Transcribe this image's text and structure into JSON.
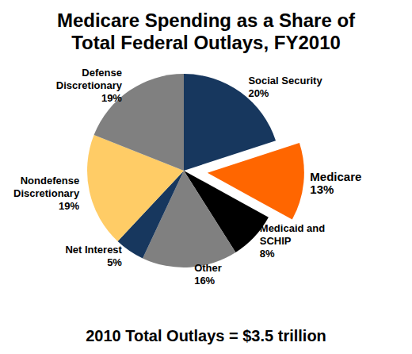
{
  "chart_data": {
    "type": "pie",
    "title": "Medicare Spending as a Share of\nTotal Federal Outlays, FY2010",
    "subtitle": "2010 Total Outlays = $3.5 trillion",
    "categories": [
      "Social Security",
      "Medicare",
      "Medicaid and\nSCHIP",
      "Other",
      "Net Interest",
      "Nondefense\nDiscretionary",
      "Defense\nDiscretionary"
    ],
    "values": [
      20,
      13,
      8,
      16,
      5,
      19,
      19
    ],
    "value_labels": [
      "20%",
      "13%",
      "8%",
      "16%",
      "5%",
      "19%",
      "19%"
    ],
    "colors": [
      "#17375e",
      "#ff6600",
      "#000000",
      "#808080",
      "#17375e",
      "#ffcc66",
      "#808080"
    ],
    "data_labels": true
  }
}
